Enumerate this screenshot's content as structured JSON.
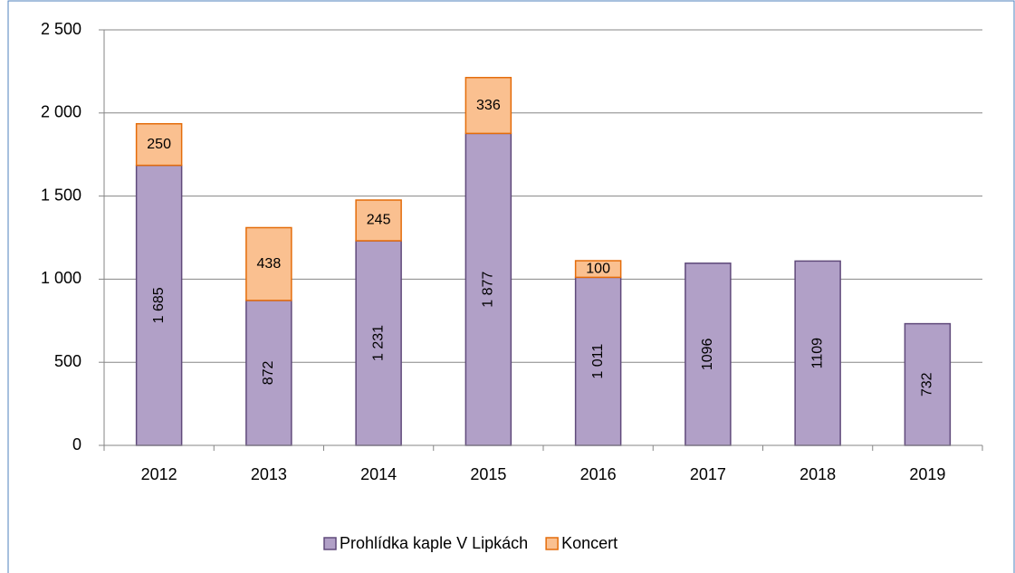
{
  "chart_data": {
    "type": "stacked-bar",
    "categories": [
      "2012",
      "2013",
      "2014",
      "2015",
      "2016",
      "2017",
      "2018",
      "2019"
    ],
    "series": [
      {
        "name": "Prohlídka kaple V Lipkách",
        "color": "#b1a0c7",
        "values": [
          1685,
          872,
          1231,
          1877,
          1011,
          1096,
          1109,
          732
        ],
        "value_labels": [
          "1 685",
          "872",
          "1 231",
          "1 877",
          "1 011",
          "1096",
          "1109",
          "732"
        ]
      },
      {
        "name": "Koncert",
        "color": "#fac090",
        "values": [
          250,
          438,
          245,
          336,
          100,
          null,
          null,
          null
        ]
      }
    ],
    "ylim": [
      0,
      2500
    ],
    "yticks": [
      0,
      500,
      {
        "value": 1000,
        "label": "1 000"
      },
      {
        "value": 1500,
        "label": "1 500"
      },
      {
        "value": 2000,
        "label": "2 000"
      },
      {
        "value": 2500,
        "label": "2 500"
      }
    ],
    "grid": true,
    "legend": "bottom"
  }
}
